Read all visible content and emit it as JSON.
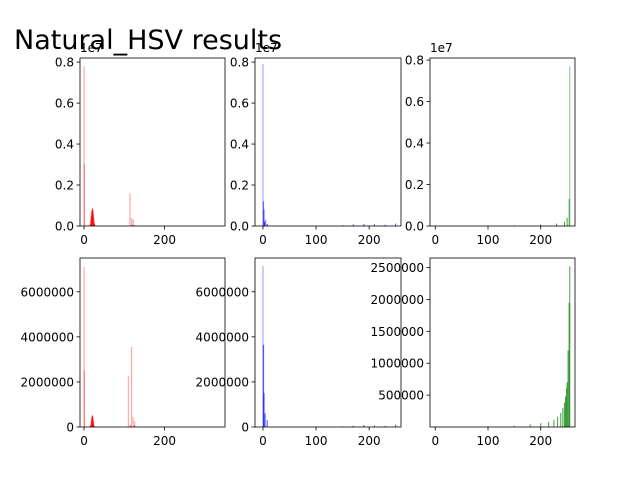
{
  "figure": {
    "title": "Natural_HSV results"
  },
  "chart_data": [
    {
      "type": "bar",
      "panel": "row1-col1",
      "color": "#ff0000",
      "xlim": [
        -10,
        350
      ],
      "ylim": [
        0,
        0.82
      ],
      "yunit_offset": "1e7",
      "xticks": [
        "0",
        "200"
      ],
      "yticks": [
        "0.0",
        "0.2",
        "0.4",
        "0.6",
        "0.8"
      ],
      "xtick_values": [
        0,
        200
      ],
      "ytick_values": [
        0,
        0.2,
        0.4,
        0.6,
        0.8
      ],
      "peaks": [
        {
          "x": 0,
          "y": 0.78,
          "alpha": 0.35
        },
        {
          "x": 1,
          "y": 0.3,
          "alpha": 0.35
        },
        {
          "x": 114,
          "y": 0.16,
          "alpha": 0.35
        },
        {
          "x": 118,
          "y": 0.04,
          "alpha": 0.35
        },
        {
          "x": 122,
          "y": 0.03,
          "alpha": 0.35
        }
      ],
      "mass": [
        {
          "x": 15,
          "y": 0.01
        },
        {
          "x": 17,
          "y": 0.03
        },
        {
          "x": 18,
          "y": 0.05
        },
        {
          "x": 19,
          "y": 0.07
        },
        {
          "x": 20,
          "y": 0.08
        },
        {
          "x": 21,
          "y": 0.085
        },
        {
          "x": 22,
          "y": 0.08
        },
        {
          "x": 23,
          "y": 0.06
        },
        {
          "x": 24,
          "y": 0.04
        },
        {
          "x": 25,
          "y": 0.02
        },
        {
          "x": 26,
          "y": 0.01
        },
        {
          "x": 120,
          "y": 0.005
        },
        {
          "x": 124,
          "y": 0.004
        }
      ]
    },
    {
      "type": "bar",
      "panel": "row1-col2",
      "color": "#0000ff",
      "xlim": [
        -15,
        260
      ],
      "ylim": [
        0,
        0.82
      ],
      "yunit_offset": "1e7",
      "xticks": [
        "0",
        "100",
        "200"
      ],
      "yticks": [
        "0.0",
        "0.2",
        "0.4",
        "0.6",
        "0.8"
      ],
      "xtick_values": [
        0,
        100,
        200
      ],
      "ytick_values": [
        0,
        0.2,
        0.4,
        0.6,
        0.8
      ],
      "peaks": [
        {
          "x": 0,
          "y": 0.79,
          "alpha": 0.35
        },
        {
          "x": 1,
          "y": 0.12,
          "alpha": 0.5
        },
        {
          "x": 2,
          "y": 0.08,
          "alpha": 0.5
        },
        {
          "x": 5,
          "y": 0.03,
          "alpha": 0.5
        }
      ],
      "mass": [
        {
          "x": 3,
          "y": 0.02
        },
        {
          "x": 8,
          "y": 0.01
        },
        {
          "x": 150,
          "y": 0.004
        },
        {
          "x": 170,
          "y": 0.008
        },
        {
          "x": 190,
          "y": 0.01
        },
        {
          "x": 210,
          "y": 0.008
        },
        {
          "x": 230,
          "y": 0.006
        },
        {
          "x": 250,
          "y": 0.012
        }
      ]
    },
    {
      "type": "bar",
      "panel": "row1-col3",
      "color": "#008000",
      "xlim": [
        -10,
        265
      ],
      "ylim": [
        0,
        0.81
      ],
      "yunit_offset": "1e7",
      "xticks": [
        "0",
        "100",
        "200"
      ],
      "yticks": [
        "0.0",
        "0.2",
        "0.4",
        "0.6",
        "0.8"
      ],
      "xtick_values": [
        0,
        100,
        200
      ],
      "ytick_values": [
        0,
        0.2,
        0.4,
        0.6,
        0.8
      ],
      "peaks": [
        {
          "x": 255,
          "y": 0.77,
          "alpha": 0.4
        },
        {
          "x": 254,
          "y": 0.13,
          "alpha": 0.6
        }
      ],
      "mass": [
        {
          "x": 100,
          "y": 0.002
        },
        {
          "x": 150,
          "y": 0.004
        },
        {
          "x": 200,
          "y": 0.008
        },
        {
          "x": 230,
          "y": 0.012
        },
        {
          "x": 245,
          "y": 0.02
        },
        {
          "x": 250,
          "y": 0.04
        }
      ]
    },
    {
      "type": "bar",
      "panel": "row2-col1",
      "color": "#ff0000",
      "xlim": [
        -10,
        350
      ],
      "ylim": [
        0,
        7500000
      ],
      "yunit_offset": "",
      "xticks": [
        "0",
        "200"
      ],
      "yticks": [
        "0",
        "2000000",
        "4000000",
        "6000000"
      ],
      "xtick_values": [
        0,
        200
      ],
      "ytick_values": [
        0,
        2000000,
        4000000,
        6000000
      ],
      "peaks": [
        {
          "x": 0,
          "y": 7100000,
          "alpha": 0.35
        },
        {
          "x": 1,
          "y": 2500000,
          "alpha": 0.35
        },
        {
          "x": 110,
          "y": 2250000,
          "alpha": 0.35
        },
        {
          "x": 118,
          "y": 3550000,
          "alpha": 0.35
        },
        {
          "x": 122,
          "y": 450000,
          "alpha": 0.35
        },
        {
          "x": 126,
          "y": 250000,
          "alpha": 0.35
        }
      ],
      "mass": [
        {
          "x": 16,
          "y": 80000
        },
        {
          "x": 18,
          "y": 250000
        },
        {
          "x": 19,
          "y": 400000
        },
        {
          "x": 20,
          "y": 480000
        },
        {
          "x": 21,
          "y": 520000
        },
        {
          "x": 22,
          "y": 450000
        },
        {
          "x": 23,
          "y": 300000
        },
        {
          "x": 24,
          "y": 150000
        },
        {
          "x": 25,
          "y": 60000
        },
        {
          "x": 115,
          "y": 80000
        },
        {
          "x": 125,
          "y": 60000
        }
      ]
    },
    {
      "type": "bar",
      "panel": "row2-col2",
      "color": "#0000ff",
      "xlim": [
        -15,
        260
      ],
      "ylim": [
        0,
        7500000
      ],
      "yunit_offset": "",
      "xticks": [
        "0",
        "100",
        "200"
      ],
      "yticks": [
        "0",
        "2000000",
        "4000000",
        "6000000"
      ],
      "xtick_values": [
        0,
        100,
        200
      ],
      "ytick_values": [
        0,
        2000000,
        4000000,
        6000000
      ],
      "peaks": [
        {
          "x": 0,
          "y": 7150000,
          "alpha": 0.35
        },
        {
          "x": 1,
          "y": 3650000,
          "alpha": 0.6
        },
        {
          "x": 2,
          "y": 1500000,
          "alpha": 0.6
        },
        {
          "x": 4,
          "y": 600000,
          "alpha": 0.6
        },
        {
          "x": 8,
          "y": 300000,
          "alpha": 0.6
        }
      ],
      "mass": [
        {
          "x": 150,
          "y": 30000
        },
        {
          "x": 170,
          "y": 60000
        },
        {
          "x": 190,
          "y": 90000
        },
        {
          "x": 210,
          "y": 70000
        },
        {
          "x": 230,
          "y": 50000
        },
        {
          "x": 250,
          "y": 100000
        }
      ]
    },
    {
      "type": "bar",
      "panel": "row2-col3",
      "color": "#008000",
      "xlim": [
        -10,
        265
      ],
      "ylim": [
        0,
        2650000
      ],
      "yunit_offset": "",
      "xticks": [
        "0",
        "100",
        "200"
      ],
      "yticks": [
        "500000",
        "1000000",
        "1500000",
        "2000000",
        "2500000"
      ],
      "xtick_values": [
        0,
        100,
        200
      ],
      "ytick_values": [
        500000,
        1000000,
        1500000,
        2000000,
        2500000
      ],
      "peaks": [
        {
          "x": 255,
          "y": 2520000,
          "alpha": 0.6
        },
        {
          "x": 254,
          "y": 1950000,
          "alpha": 0.7
        },
        {
          "x": 252,
          "y": 1200000,
          "alpha": 0.7
        },
        {
          "x": 250,
          "y": 700000,
          "alpha": 0.7
        }
      ],
      "mass": [
        {
          "x": 100,
          "y": 10000
        },
        {
          "x": 150,
          "y": 20000
        },
        {
          "x": 180,
          "y": 40000
        },
        {
          "x": 200,
          "y": 60000
        },
        {
          "x": 215,
          "y": 80000
        },
        {
          "x": 225,
          "y": 110000
        },
        {
          "x": 232,
          "y": 160000
        },
        {
          "x": 238,
          "y": 220000
        },
        {
          "x": 242,
          "y": 300000
        },
        {
          "x": 245,
          "y": 380000
        },
        {
          "x": 247,
          "y": 480000
        },
        {
          "x": 249,
          "y": 600000
        }
      ]
    }
  ]
}
